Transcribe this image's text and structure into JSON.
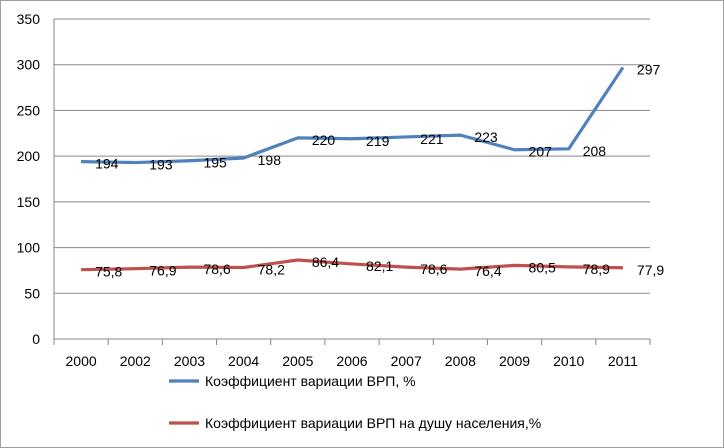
{
  "chart_data": {
    "type": "line",
    "title": "",
    "xlabel": "",
    "ylabel": "",
    "categories": [
      "2000",
      "2002",
      "2003",
      "2004",
      "2005",
      "2006",
      "2007",
      "2008",
      "2009",
      "2010",
      "2011"
    ],
    "ylim": [
      0,
      350
    ],
    "yticks": [
      "0",
      "50",
      "100",
      "150",
      "200",
      "250",
      "300",
      "350"
    ],
    "grid": true,
    "legend_placement": "bottom",
    "series": [
      {
        "name": "Коэффициент вариации ВРП, %",
        "color": "#4f81bd",
        "values": [
          194,
          193,
          195,
          198,
          220,
          219,
          221,
          223,
          207,
          208,
          297
        ],
        "labels": [
          "194",
          "193",
          "195",
          "198",
          "220",
          "219",
          "221",
          "223",
          "207",
          "208",
          "297"
        ]
      },
      {
        "name": "Коэффициент вариации ВРП на душу населения,%",
        "color": "#c0504d",
        "values": [
          75.8,
          76.9,
          78.6,
          78.2,
          86.4,
          82.1,
          78.6,
          76.4,
          80.5,
          78.9,
          77.9
        ],
        "labels": [
          "75,8",
          "76,9",
          "78,6",
          "78,2",
          "86,4",
          "82,1",
          "78,6",
          "76,4",
          "80,5",
          "78,9",
          "77,9"
        ]
      }
    ]
  }
}
